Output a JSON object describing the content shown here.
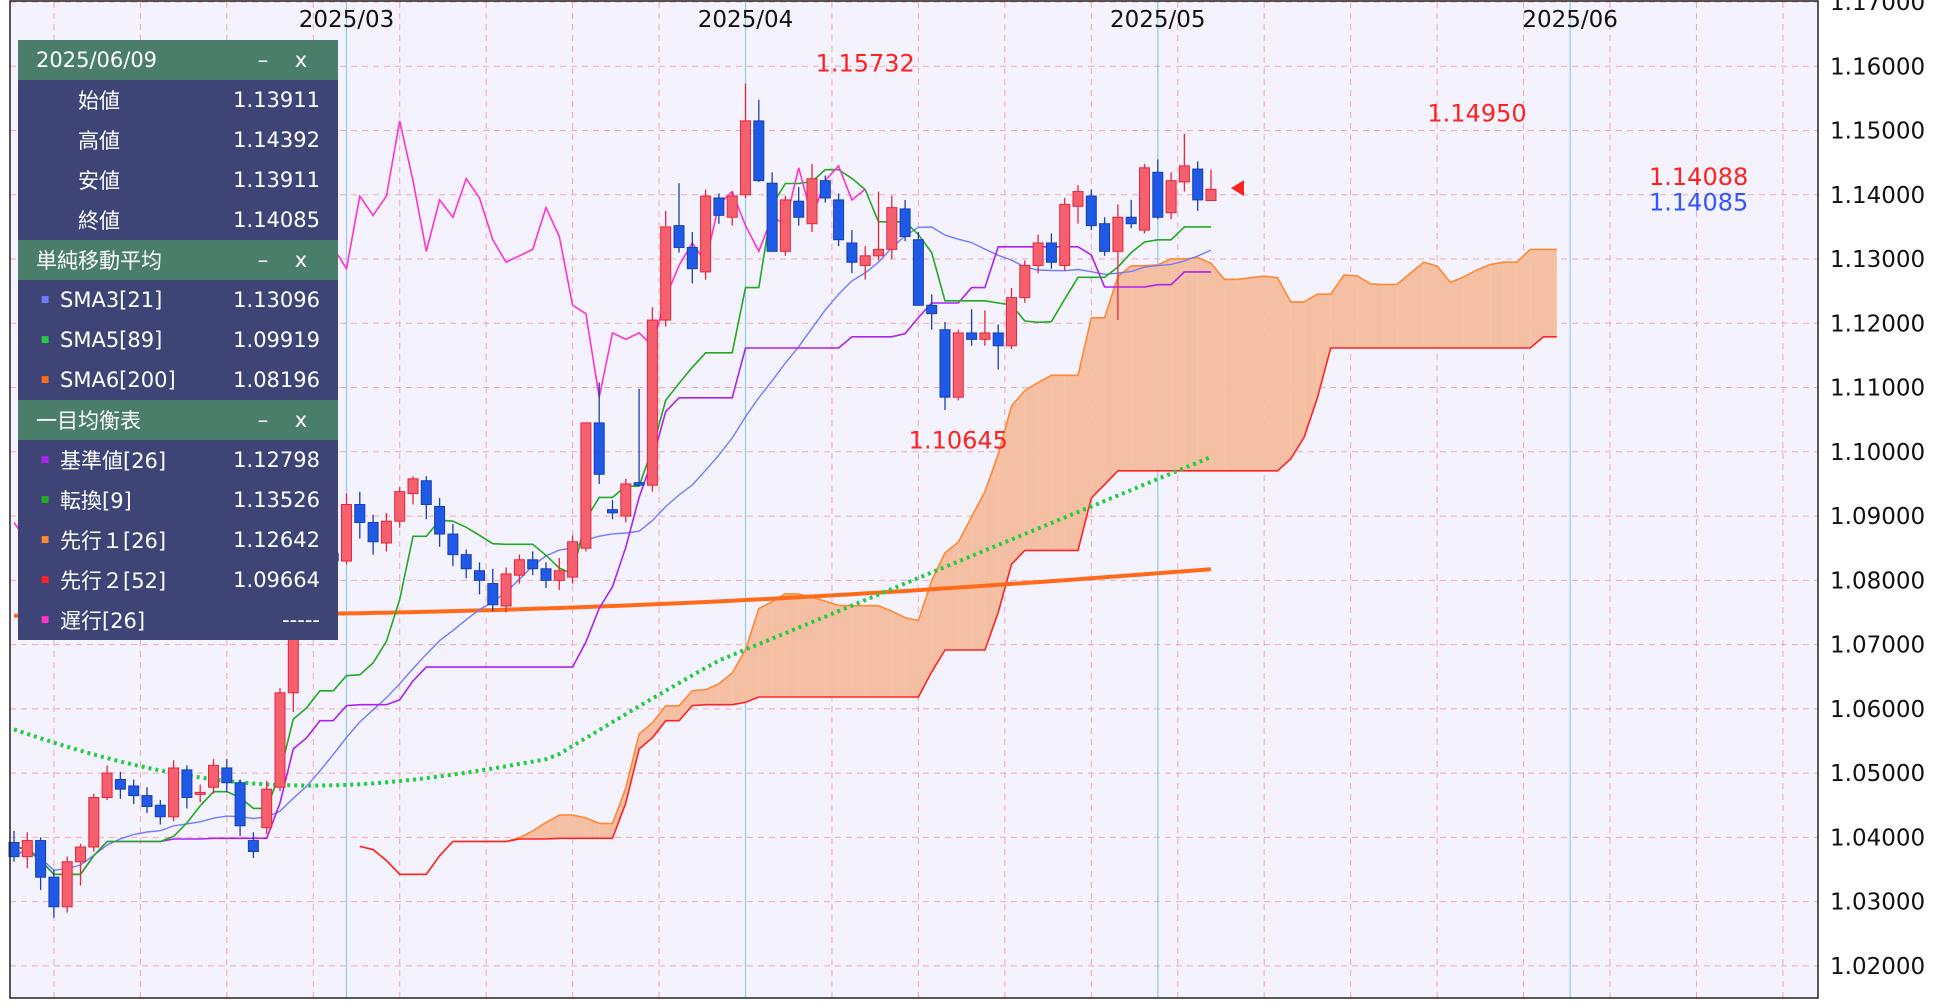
{
  "chart_data": {
    "type": "candlestick",
    "y_range": [
      1.015,
      1.17
    ],
    "y_ticks": [
      1.02,
      1.03,
      1.04,
      1.05,
      1.06,
      1.07,
      1.08,
      1.09,
      1.1,
      1.11,
      1.12,
      1.13,
      1.14,
      1.15,
      1.16,
      1.17
    ],
    "y_tick_labels": [
      "1.02000",
      "1.03000",
      "1.04000",
      "1.05000",
      "1.06000",
      "1.07000",
      "1.08000",
      "1.09000",
      "1.10000",
      "1.11000",
      "1.12000",
      "1.13000",
      "1.14000",
      "1.15000",
      "1.16000",
      "1.17000"
    ],
    "x_month_labels": [
      {
        "label": "2025/03",
        "index": 25
      },
      {
        "label": "2025/04",
        "index": 55
      },
      {
        "label": "2025/05",
        "index": 86
      },
      {
        "label": "2025/06",
        "index": 117
      }
    ],
    "grid": true,
    "candles": [
      [
        1.0392,
        1.041,
        1.0362,
        1.037
      ],
      [
        1.037,
        1.0408,
        1.0352,
        1.0395
      ],
      [
        1.0395,
        1.04,
        1.0318,
        1.0338
      ],
      [
        1.0338,
        1.035,
        1.0275,
        1.0292
      ],
      [
        1.0292,
        1.037,
        1.0283,
        1.0362
      ],
      [
        1.0362,
        1.039,
        1.0325,
        1.0385
      ],
      [
        1.0385,
        1.0468,
        1.0378,
        1.0462
      ],
      [
        1.0462,
        1.0512,
        1.0458,
        1.05
      ],
      [
        1.049,
        1.0502,
        1.046,
        1.0475
      ],
      [
        1.048,
        1.049,
        1.0452,
        1.0465
      ],
      [
        1.0465,
        1.0478,
        1.0438,
        1.0448
      ],
      [
        1.045,
        1.0458,
        1.042,
        1.0432
      ],
      [
        1.0432,
        1.052,
        1.0425,
        1.0508
      ],
      [
        1.0505,
        1.0512,
        1.0445,
        1.0462
      ],
      [
        1.0468,
        1.0482,
        1.0455,
        1.047
      ],
      [
        1.0478,
        1.0522,
        1.0468,
        1.0512
      ],
      [
        1.0508,
        1.0522,
        1.047,
        1.0485
      ],
      [
        1.0485,
        1.049,
        1.0402,
        1.0418
      ],
      [
        1.0395,
        1.0408,
        1.0368,
        1.0378
      ],
      [
        1.0415,
        1.0488,
        1.0405,
        1.0475
      ],
      [
        1.0478,
        1.0632,
        1.0472,
        1.0625
      ],
      [
        1.0625,
        1.08,
        1.0595,
        1.079
      ],
      [
        1.0788,
        1.0835,
        1.0778,
        1.0785
      ],
      [
        1.0785,
        1.0888,
        1.0775,
        1.0842
      ],
      [
        1.0842,
        1.0855,
        1.0828,
        1.083
      ],
      [
        1.083,
        1.0935,
        1.0825,
        1.0918
      ],
      [
        1.0918,
        1.0938,
        1.0865,
        1.089
      ],
      [
        1.089,
        1.0902,
        1.084,
        1.086
      ],
      [
        1.0858,
        1.0905,
        1.0845,
        1.0892
      ],
      [
        1.0892,
        1.0945,
        1.0882,
        1.0938
      ],
      [
        1.0935,
        1.0962,
        1.0918,
        1.0958
      ],
      [
        1.0955,
        1.0962,
        1.0895,
        1.0918
      ],
      [
        1.0915,
        1.0928,
        1.0852,
        1.0872
      ],
      [
        1.0872,
        1.0888,
        1.0822,
        1.084
      ],
      [
        1.084,
        1.0848,
        1.0803,
        1.0818
      ],
      [
        1.0815,
        1.0828,
        1.0778,
        1.08
      ],
      [
        1.0795,
        1.0818,
        1.0752,
        1.0762
      ],
      [
        1.076,
        1.082,
        1.075,
        1.081
      ],
      [
        1.0808,
        1.084,
        1.0795,
        1.0832
      ],
      [
        1.0832,
        1.0845,
        1.0808,
        1.0818
      ],
      [
        1.0818,
        1.0828,
        1.0788,
        1.08
      ],
      [
        1.08,
        1.0835,
        1.0785,
        1.0815
      ],
      [
        1.0805,
        1.087,
        1.0795,
        1.086
      ],
      [
        1.085,
        1.104,
        1.0845,
        1.1045
      ],
      [
        1.1045,
        1.1108,
        1.095,
        1.0965
      ],
      [
        1.091,
        1.0925,
        1.0895,
        1.0905
      ],
      [
        1.09,
        1.0958,
        1.089,
        1.095
      ],
      [
        1.0952,
        1.1098,
        1.0948,
        1.0948
      ],
      [
        1.0948,
        1.1225,
        1.0938,
        1.1205
      ],
      [
        1.1205,
        1.1375,
        1.1195,
        1.135
      ],
      [
        1.1352,
        1.1418,
        1.131,
        1.1318
      ],
      [
        1.1318,
        1.1342,
        1.1262,
        1.1285
      ],
      [
        1.128,
        1.1408,
        1.1268,
        1.1398
      ],
      [
        1.1395,
        1.1402,
        1.1355,
        1.1368
      ],
      [
        1.1365,
        1.1405,
        1.1352,
        1.1398
      ],
      [
        1.14,
        1.1573,
        1.1395,
        1.1515
      ],
      [
        1.1515,
        1.1548,
        1.142,
        1.1422
      ],
      [
        1.1418,
        1.1435,
        1.1325,
        1.1312
      ],
      [
        1.1312,
        1.1398,
        1.1305,
        1.1392
      ],
      [
        1.139,
        1.1412,
        1.1352,
        1.1365
      ],
      [
        1.1355,
        1.1448,
        1.1342,
        1.1425
      ],
      [
        1.1422,
        1.143,
        1.1388,
        1.1395
      ],
      [
        1.1392,
        1.1402,
        1.132,
        1.133
      ],
      [
        1.1325,
        1.1345,
        1.1278,
        1.1295
      ],
      [
        1.129,
        1.132,
        1.1268,
        1.1305
      ],
      [
        1.1305,
        1.1405,
        1.1298,
        1.1315
      ],
      [
        1.1315,
        1.1398,
        1.13,
        1.138
      ],
      [
        1.1378,
        1.1392,
        1.1328,
        1.1335
      ],
      [
        1.133,
        1.1342,
        1.1228,
        1.1228
      ],
      [
        1.1228,
        1.1245,
        1.119,
        1.1215
      ],
      [
        1.119,
        1.1202,
        1.1065,
        1.1085
      ],
      [
        1.1085,
        1.119,
        1.108,
        1.1185
      ],
      [
        1.1185,
        1.1222,
        1.1165,
        1.1175
      ],
      [
        1.1175,
        1.122,
        1.1165,
        1.1185
      ],
      [
        1.1185,
        1.1198,
        1.1128,
        1.1165
      ],
      [
        1.1165,
        1.1255,
        1.116,
        1.124
      ],
      [
        1.124,
        1.1298,
        1.1232,
        1.129
      ],
      [
        1.129,
        1.1338,
        1.1278,
        1.1325
      ],
      [
        1.1325,
        1.134,
        1.1285,
        1.1295
      ],
      [
        1.129,
        1.1395,
        1.1282,
        1.1385
      ],
      [
        1.1382,
        1.1415,
        1.1355,
        1.1405
      ],
      [
        1.1398,
        1.1408,
        1.1345,
        1.1352
      ],
      [
        1.1355,
        1.1365,
        1.1305,
        1.1312
      ],
      [
        1.1312,
        1.1385,
        1.1205,
        1.1365
      ],
      [
        1.1365,
        1.1392,
        1.1348,
        1.1355
      ],
      [
        1.1345,
        1.1448,
        1.134,
        1.1442
      ],
      [
        1.1435,
        1.1455,
        1.1362,
        1.1365
      ],
      [
        1.1372,
        1.1435,
        1.1362,
        1.1422
      ],
      [
        1.142,
        1.1495,
        1.1405,
        1.1445
      ],
      [
        1.144,
        1.1452,
        1.1375,
        1.1392
      ],
      [
        1.13911,
        1.14392,
        1.13911,
        1.14085
      ]
    ],
    "annotations": [
      {
        "text": "1.15732",
        "index": 64,
        "value": 1.15732,
        "color": "#ff2020",
        "pos": "above"
      },
      {
        "text": "1.14950",
        "index": 110,
        "value": 1.1495,
        "color": "#ff2020",
        "pos": "above"
      },
      {
        "text": "1.10645",
        "index": 71,
        "value": 1.10645,
        "color": "#ff2020",
        "pos": "below"
      }
    ],
    "price_markers": [
      {
        "text": "1.14088",
        "value": 1.14088,
        "color": "#ff2020"
      },
      {
        "text": "1.14085",
        "value": 1.14085,
        "color": "#3355ff"
      }
    ]
  },
  "legend_panel": {
    "ohlc": {
      "date": "2025/06/09",
      "rows": [
        {
          "label": "始値",
          "value": "1.13911"
        },
        {
          "label": "高値",
          "value": "1.14392"
        },
        {
          "label": "安値",
          "value": "1.13911"
        },
        {
          "label": "終値",
          "value": "1.14085"
        }
      ]
    },
    "sma": {
      "title": "単純移動平均",
      "rows": [
        {
          "label": "SMA3[21]",
          "value": "1.13096",
          "color": "#6f7cff"
        },
        {
          "label": "SMA5[89]",
          "value": "1.09919",
          "color": "#22cc44"
        },
        {
          "label": "SMA6[200]",
          "value": "1.08196",
          "color": "#ff6a1a"
        }
      ]
    },
    "ichimoku": {
      "title": "一目均衡表",
      "rows": [
        {
          "label": "基準値[26]",
          "value": "1.12798",
          "color": "#aa22ee"
        },
        {
          "label": "転換[9]",
          "value": "1.13526",
          "color": "#22aa22"
        },
        {
          "label": "先行１[26]",
          "value": "1.12642",
          "color": "#ff8833"
        },
        {
          "label": "先行２[52]",
          "value": "1.09664",
          "color": "#ff2222"
        },
        {
          "label": "遅行[26]",
          "value": "-----",
          "color": "#ff33cc"
        }
      ]
    },
    "minimize_label": "–",
    "close_label": "x"
  },
  "colors": {
    "up": "#f4606e",
    "down": "#1f5ae6",
    "cloud_bull": "#f5bfa3",
    "cloud_bear": "#d9d9e2"
  }
}
